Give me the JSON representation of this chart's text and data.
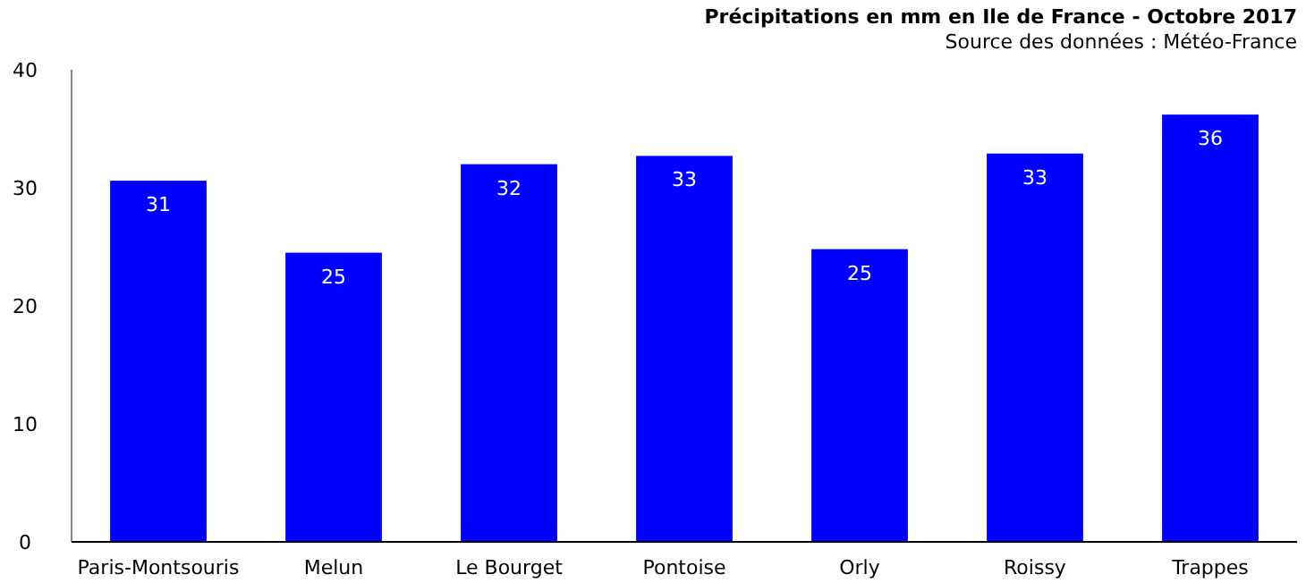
{
  "chart_data": {
    "type": "bar",
    "title": "Précipitations en mm en Ile de France - Octobre 2017",
    "subtitle": "Source des données : Météo-France",
    "categories": [
      "Paris-Montsouris",
      "Melun",
      "Le Bourget",
      "Pontoise",
      "Orly",
      "Roissy",
      "Trappes"
    ],
    "values": [
      30.6,
      24.5,
      32.0,
      32.7,
      24.8,
      32.9,
      36.2
    ],
    "value_labels": [
      "31",
      "25",
      "32",
      "33",
      "25",
      "33",
      "36"
    ],
    "color": "#0000ff",
    "ylim": [
      0,
      40
    ],
    "yticks": [
      0,
      10,
      20,
      30,
      40
    ],
    "grid": false
  }
}
